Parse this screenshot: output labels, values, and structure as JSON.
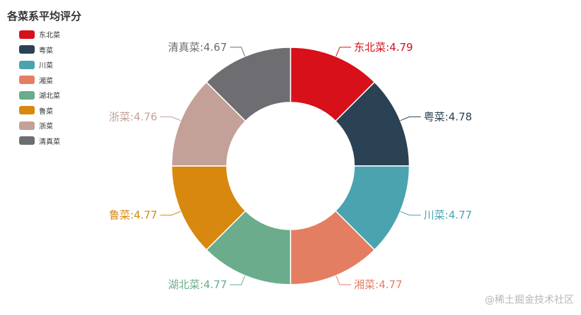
{
  "chart_data": {
    "type": "pie",
    "title": "各菜系平均评分",
    "categories": [
      "东北菜",
      "粤菜",
      "川菜",
      "湘菜",
      "湖北菜",
      "鲁菜",
      "浙菜",
      "清真菜"
    ],
    "values": [
      4.79,
      4.78,
      4.77,
      4.77,
      4.77,
      4.77,
      4.76,
      4.67
    ],
    "labels": [
      "东北菜:4.79",
      "粤菜:4.78",
      "川菜:4.77",
      "湘菜:4.77",
      "湖北菜:4.77",
      "鲁菜:4.77",
      "浙菜:4.76",
      "清真菜:4.67"
    ],
    "colors": [
      "#d7101a",
      "#2a4253",
      "#4aa3af",
      "#e47e62",
      "#6aac8b",
      "#d8880f",
      "#c3a198",
      "#6e6e72"
    ],
    "legend": "top-left",
    "donut": true
  },
  "watermark": "@稀土掘金技术社区"
}
